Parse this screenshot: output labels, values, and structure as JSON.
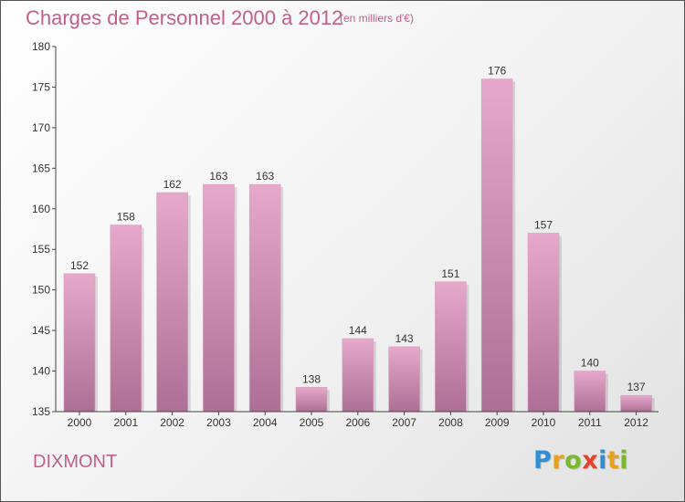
{
  "header": {
    "title": "Charges de Personnel 2000 à 2012",
    "subtitle": "(en milliers d'€)"
  },
  "footer": {
    "commune": "DIXMONT",
    "logo_text": "Proxiti",
    "logo_colors": [
      "#2f8fd6",
      "#e8a21a",
      "#7ab830",
      "#e0442c",
      "#2f8fd6",
      "#e8a21a",
      "#7ab830"
    ]
  },
  "colors": {
    "bar_top": "#e6a8cb",
    "bar_bottom": "#ad6f95",
    "text_accent": "#c0608a"
  },
  "chart_data": {
    "type": "bar",
    "title": "Charges de Personnel 2000 à 2012",
    "subtitle": "(en milliers d'€)",
    "categories": [
      "2000",
      "2001",
      "2002",
      "2003",
      "2004",
      "2005",
      "2006",
      "2007",
      "2008",
      "2009",
      "2010",
      "2011",
      "2012"
    ],
    "values": [
      152,
      158,
      162,
      163,
      163,
      138,
      144,
      143,
      151,
      176,
      157,
      140,
      137
    ],
    "ylim": [
      135,
      180
    ],
    "yticks": [
      135,
      140,
      145,
      150,
      155,
      160,
      165,
      170,
      175,
      180
    ],
    "grid": false,
    "legend": "none"
  }
}
